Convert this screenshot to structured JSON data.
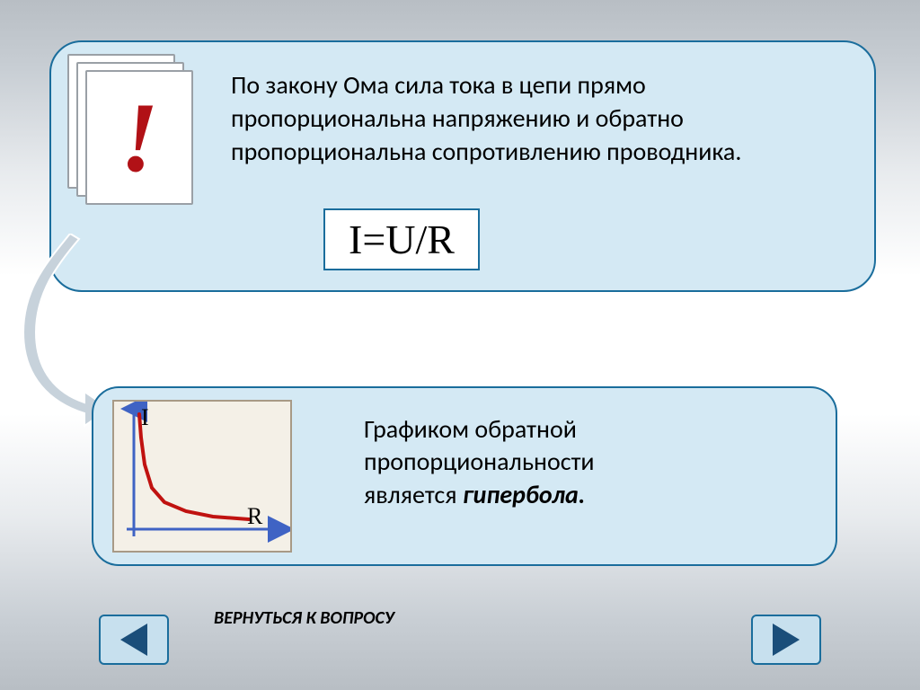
{
  "colors": {
    "panel_bg": "#d4e9f4",
    "panel_border": "#1a6d9c",
    "exclamation": "#b11116",
    "text": "#000000",
    "chart_bg": "#f4f0e7",
    "chart_border": "#a89a86",
    "axis_stroke": "#3f63c4",
    "curve_stroke": "#c01210",
    "nav_bg": "#c7e0ee",
    "nav_tri": "#1a4e7a",
    "connector": "#c7d2db"
  },
  "note": {
    "symbol": "!"
  },
  "law": {
    "text": "    По закону Ома сила тока в цепи прямо пропорциональна напряжению и обратно пропорциональна сопротивлению проводника.",
    "fontsize": 28
  },
  "formula": {
    "text": "I=U/R",
    "fontsize": 46
  },
  "chart": {
    "type": "line",
    "y_label": "I",
    "x_label": "R",
    "label_fontsize": 26,
    "label_font": "Times New Roman",
    "axis_color": "#3f63c4",
    "curve_color": "#c01210",
    "curve_width": 4,
    "curve_points": [
      [
        28,
        14
      ],
      [
        30,
        40
      ],
      [
        34,
        70
      ],
      [
        42,
        96
      ],
      [
        56,
        112
      ],
      [
        80,
        122
      ],
      [
        110,
        128
      ],
      [
        150,
        131
      ]
    ],
    "background_color": "#f4f0e7",
    "border_color": "#a89a86"
  },
  "graph_caption": {
    "line1": "Графиком обратной",
    "line2": "пропорциональности",
    "line3_plain": "является  ",
    "line3_ital": "гипербола.",
    "fontsize": 28
  },
  "nav": {
    "return_label": "ВЕРНУТЬСЯ К ВОПРОСУ"
  }
}
